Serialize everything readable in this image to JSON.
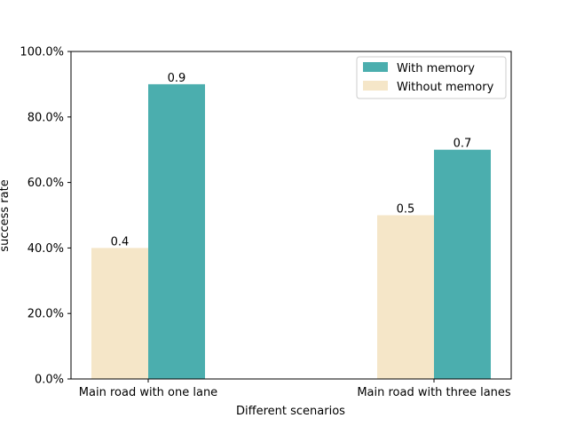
{
  "chart_data": {
    "type": "bar",
    "title": "",
    "xlabel": "Different scenarios",
    "ylabel": "success rate",
    "categories": [
      "Main road with one lane",
      "Main road with three lanes"
    ],
    "series": [
      {
        "name": "Without memory",
        "values": [
          0.4,
          0.5
        ],
        "color": "#f5e6c8"
      },
      {
        "name": "With memory",
        "values": [
          0.9,
          0.7
        ],
        "color": "#4baeae"
      }
    ],
    "data_labels": [
      [
        "0.4",
        "0.5"
      ],
      [
        "0.9",
        "0.7"
      ]
    ],
    "ylim": [
      0,
      1
    ],
    "yticks": [
      0,
      0.2,
      0.4,
      0.6,
      0.8,
      1.0
    ],
    "ytick_labels": [
      "0.0%",
      "20.0%",
      "40.0%",
      "60.0%",
      "80.0%",
      "100.0%"
    ],
    "legend": {
      "position": "top-right",
      "entries": [
        "With memory",
        "Without memory"
      ]
    },
    "grid": false
  }
}
